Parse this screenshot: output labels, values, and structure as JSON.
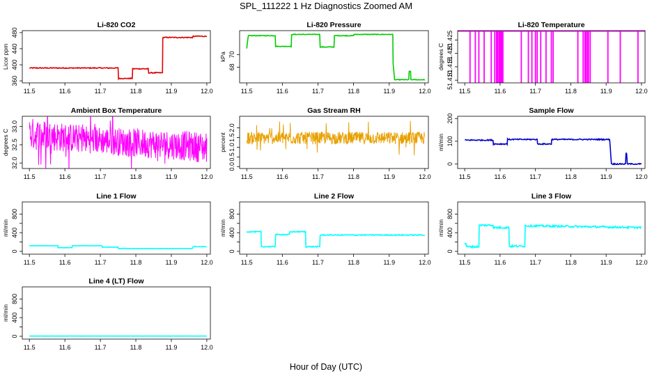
{
  "figure": {
    "title": "SPL_111222  1 Hz Diagnostics Zoomed AM",
    "xlabel": "Hour of Day (UTC)"
  },
  "chart_data": [
    {
      "type": "line",
      "title": "Li-820 CO2",
      "ylabel": "Licor ppm",
      "color": "#e00000",
      "xlim": [
        11.48,
        12.01
      ],
      "ylim": [
        355,
        485
      ],
      "xticks": [
        11.5,
        11.6,
        11.7,
        11.8,
        11.9,
        12.0
      ],
      "xtick_labels": [
        "11.5",
        "11.6",
        "11.7",
        "11.8",
        "11.9",
        "12.0"
      ],
      "yticks": [
        360,
        400,
        440,
        480
      ],
      "ytick_labels": [
        "360",
        "400",
        "440",
        "480"
      ],
      "noise": 1.2,
      "x": [
        11.5,
        11.75,
        11.751,
        11.79,
        11.791,
        11.835,
        11.836,
        11.875,
        11.876,
        11.96,
        11.961,
        12.0
      ],
      "y": [
        392,
        392,
        366,
        366,
        390,
        390,
        380,
        380,
        468,
        468,
        471,
        471
      ]
    },
    {
      "type": "line",
      "title": "Li-820 Pressure",
      "ylabel": "kPa",
      "color": "#00cc00",
      "xlim": [
        11.48,
        12.01
      ],
      "ylim": [
        65.5,
        73.8
      ],
      "xticks": [
        11.5,
        11.6,
        11.7,
        11.8,
        11.9,
        12.0
      ],
      "xtick_labels": [
        "11.5",
        "11.6",
        "11.7",
        "11.8",
        "11.9",
        "12.0"
      ],
      "yticks": [
        68,
        70
      ],
      "ytick_labels": [
        "68",
        "70"
      ],
      "noise": 0.05,
      "x": [
        11.5,
        11.504,
        11.505,
        11.58,
        11.581,
        11.625,
        11.626,
        11.705,
        11.706,
        11.745,
        11.746,
        11.8,
        11.801,
        11.91,
        11.911,
        11.915,
        11.955,
        11.956,
        11.96,
        11.961,
        12.0
      ],
      "y": [
        71.0,
        72.8,
        73.0,
        73.0,
        71.3,
        71.3,
        73.2,
        73.2,
        71.2,
        71.2,
        73.0,
        73.0,
        73.2,
        73.2,
        68.5,
        66.0,
        66.0,
        67.3,
        67.3,
        66.0,
        66.0
      ]
    },
    {
      "type": "spikes",
      "title": "Li-820 Temperature",
      "ylabel": "degrees C",
      "color": "#ff00ff",
      "xlim": [
        11.48,
        12.01
      ],
      "ylim": [
        51.409,
        51.4285
      ],
      "xticks": [
        11.5,
        11.6,
        11.7,
        11.8,
        11.9,
        12.0
      ],
      "xtick_labels": [
        "11.5",
        "11.6",
        "11.7",
        "11.8",
        "11.9",
        "12.0"
      ],
      "yticks": [
        51.41,
        51.415,
        51.42,
        51.425
      ],
      "ytick_labels": [
        "51.410",
        "51.415",
        "51.420",
        "51.425"
      ],
      "baseline": 51.4283,
      "low": 51.409,
      "spikes": [
        11.515,
        11.53,
        11.54,
        11.555,
        11.575,
        11.585,
        11.59,
        11.593,
        11.597,
        11.6,
        11.603,
        11.606,
        11.608,
        11.66,
        11.68,
        11.69,
        11.7,
        11.705,
        11.715,
        11.73,
        11.745,
        11.75,
        11.82,
        11.835,
        11.84,
        11.843,
        11.847,
        11.85,
        11.855,
        11.905,
        11.94,
        11.99
      ]
    },
    {
      "type": "noise_band",
      "title": "Ambient Box Temperature",
      "ylabel": "degrees C",
      "color": "#ff00ff",
      "xlim": [
        11.48,
        12.01
      ],
      "ylim": [
        31.85,
        33.28
      ],
      "xticks": [
        11.5,
        11.6,
        11.7,
        11.8,
        11.9,
        12.0
      ],
      "xtick_labels": [
        "11.5",
        "11.6",
        "11.7",
        "11.8",
        "11.9",
        "12.0"
      ],
      "yticks": [
        32.0,
        32.5,
        33.0
      ],
      "ytick_labels": [
        "32.0",
        "32.5",
        "33.0"
      ],
      "x": [
        11.5,
        11.6,
        11.7,
        11.8,
        11.9,
        12.0
      ],
      "y_low": [
        32.35,
        32.3,
        32.25,
        32.15,
        32.1,
        32.0
      ],
      "y_high": [
        33.25,
        33.1,
        33.0,
        32.95,
        32.9,
        32.85
      ]
    },
    {
      "type": "noise_band",
      "title": "Gas Stream RH",
      "ylabel": "percent",
      "color": "#e8a000",
      "xlim": [
        11.48,
        12.01
      ],
      "ylim": [
        -0.1,
        2.6
      ],
      "xticks": [
        11.5,
        11.6,
        11.7,
        11.8,
        11.9,
        12.0
      ],
      "xtick_labels": [
        "11.5",
        "11.6",
        "11.7",
        "11.8",
        "11.9",
        "12.0"
      ],
      "yticks": [
        0.0,
        0.5,
        1.0,
        1.5,
        2.0
      ],
      "ytick_labels": [
        "0.0",
        "0.5",
        "1.0",
        "1.5",
        "2.0"
      ],
      "x": [
        11.5,
        12.0
      ],
      "y_low": [
        1.15,
        1.15
      ],
      "y_high": [
        1.8,
        1.8
      ]
    },
    {
      "type": "line",
      "title": "Sample Flow",
      "ylabel": "ml/min",
      "color": "#0000cc",
      "xlim": [
        11.48,
        12.01
      ],
      "ylim": [
        -20,
        210
      ],
      "xticks": [
        11.5,
        11.6,
        11.7,
        11.8,
        11.9,
        12.0
      ],
      "xtick_labels": [
        "11.5",
        "11.6",
        "11.7",
        "11.8",
        "11.9",
        "12.0"
      ],
      "yticks": [
        0,
        100,
        200
      ],
      "ytick_labels": [
        "0",
        "100",
        "200"
      ],
      "noise": 2.5,
      "x": [
        11.5,
        11.58,
        11.581,
        11.62,
        11.621,
        11.705,
        11.706,
        11.745,
        11.746,
        11.91,
        11.915,
        11.955,
        11.956,
        11.958,
        11.96,
        12.0
      ],
      "y": [
        105,
        105,
        88,
        88,
        108,
        108,
        88,
        88,
        108,
        108,
        0,
        0,
        45,
        45,
        0,
        0
      ]
    },
    {
      "type": "line",
      "title": "Line 1 Flow",
      "ylabel": "ml/min",
      "color": "#00ffff",
      "xlim": [
        11.48,
        12.01
      ],
      "ylim": [
        -60,
        1060
      ],
      "xticks": [
        11.5,
        11.6,
        11.7,
        11.8,
        11.9,
        12.0
      ],
      "xtick_labels": [
        "11.5",
        "11.6",
        "11.7",
        "11.8",
        "11.9",
        "12.0"
      ],
      "yticks": [
        0,
        200,
        400,
        600,
        800
      ],
      "ytick_labels": [
        "0",
        "400",
        "800"
      ],
      "ytick_label_at": [
        0,
        400,
        800
      ],
      "noise": 4,
      "x": [
        11.5,
        11.58,
        11.581,
        11.62,
        11.621,
        11.705,
        11.706,
        11.75,
        11.751,
        11.96,
        11.961,
        12.0
      ],
      "y": [
        120,
        120,
        80,
        80,
        120,
        120,
        90,
        90,
        60,
        60,
        100,
        100
      ]
    },
    {
      "type": "line",
      "title": "Line 2 Flow",
      "ylabel": "ml/min",
      "color": "#00ffff",
      "xlim": [
        11.48,
        12.01
      ],
      "ylim": [
        -60,
        1060
      ],
      "xticks": [
        11.5,
        11.6,
        11.7,
        11.8,
        11.9,
        12.0
      ],
      "xtick_labels": [
        "11.5",
        "11.6",
        "11.7",
        "11.8",
        "11.9",
        "12.0"
      ],
      "yticks": [
        0,
        200,
        400,
        600,
        800
      ],
      "ytick_labels": [
        "0",
        "400",
        "800"
      ],
      "ytick_label_at": [
        0,
        400,
        800
      ],
      "noise": 10,
      "x": [
        11.5,
        11.54,
        11.541,
        11.58,
        11.581,
        11.62,
        11.621,
        11.665,
        11.666,
        11.705,
        11.706,
        12.0
      ],
      "y": [
        420,
        420,
        100,
        100,
        360,
        360,
        420,
        420,
        100,
        100,
        350,
        350
      ]
    },
    {
      "type": "line",
      "title": "Line 3 Flow",
      "ylabel": "ml/min",
      "color": "#00ffff",
      "xlim": [
        11.48,
        12.01
      ],
      "ylim": [
        -60,
        1060
      ],
      "xticks": [
        11.5,
        11.6,
        11.7,
        11.8,
        11.9,
        12.0
      ],
      "xtick_labels": [
        "11.5",
        "11.6",
        "11.7",
        "11.8",
        "11.9",
        "12.0"
      ],
      "yticks": [
        0,
        200,
        400,
        600,
        800
      ],
      "ytick_labels": [
        "0",
        "400",
        "800"
      ],
      "ytick_label_at": [
        0,
        400,
        800
      ],
      "noise": 20,
      "x": [
        11.5,
        11.504,
        11.505,
        11.54,
        11.541,
        11.58,
        11.581,
        11.625,
        11.626,
        11.67,
        11.671,
        12.0
      ],
      "y": [
        160,
        160,
        100,
        100,
        560,
        560,
        510,
        510,
        110,
        110,
        550,
        510
      ]
    },
    {
      "type": "line",
      "title": "Line 4 (LT) Flow",
      "ylabel": "ml/min",
      "color": "#00ffff",
      "xlim": [
        11.48,
        12.01
      ],
      "ylim": [
        -60,
        1060
      ],
      "xticks": [
        11.5,
        11.6,
        11.7,
        11.8,
        11.9,
        12.0
      ],
      "xtick_labels": [
        "11.5",
        "11.6",
        "11.7",
        "11.8",
        "11.9",
        "12.0"
      ],
      "yticks": [
        0,
        200,
        400,
        600,
        800
      ],
      "ytick_labels": [
        "0",
        "400",
        "800"
      ],
      "ytick_label_at": [
        0,
        400,
        800
      ],
      "noise": 1,
      "x": [
        11.5,
        12.0
      ],
      "y": [
        5,
        5
      ]
    }
  ]
}
